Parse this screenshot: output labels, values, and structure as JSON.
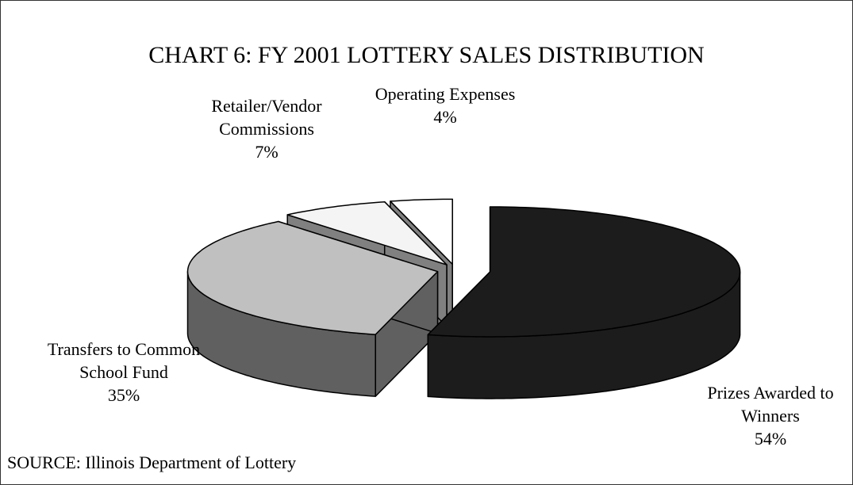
{
  "chart_data": {
    "type": "pie",
    "title": "CHART 6:  FY 2001 LOTTERY SALES DISTRIBUTION",
    "categories": [
      "Prizes Awarded to Winners",
      "Transfers to Common School Fund",
      "Retailer/Vendor Commissions",
      "Operating Expenses"
    ],
    "values": [
      54,
      35,
      7,
      4
    ],
    "value_labels": [
      "54%",
      "35%",
      "7%",
      "4%"
    ],
    "colors": [
      "#1c1c1c",
      "#c0c0c0",
      "#f4f4f4",
      "#ffffff"
    ],
    "side_colors": [
      "#1c1c1c",
      "#606060",
      "#808080",
      "#808080"
    ],
    "source": "SOURCE: Illinois Department of Lottery"
  }
}
